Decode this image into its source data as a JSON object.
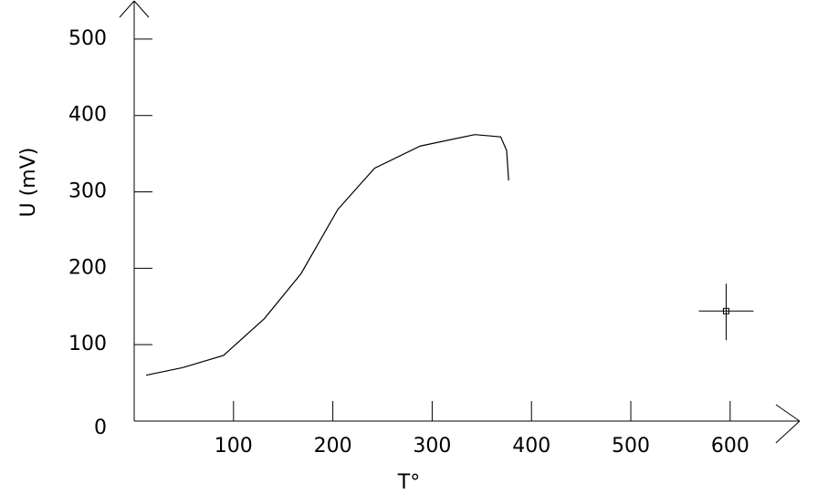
{
  "chart_data": {
    "type": "line",
    "xlabel": "T°",
    "ylabel": "U (mV)",
    "xlim": [
      0,
      670
    ],
    "ylim": [
      0,
      550
    ],
    "xticks": [
      100,
      200,
      300,
      400,
      500,
      600
    ],
    "yticks": [
      0,
      100,
      200,
      300,
      400,
      500
    ],
    "series": [
      {
        "color": "#000000",
        "x": [
          12,
          49,
          90,
          131,
          168,
          205,
          242,
          288,
          343,
          369,
          375,
          377
        ],
        "values": [
          60,
          70,
          86,
          134,
          193,
          277,
          331,
          360,
          375,
          372,
          354,
          315
        ]
      }
    ],
    "marker": {
      "x": 596,
      "y": 144
    }
  }
}
